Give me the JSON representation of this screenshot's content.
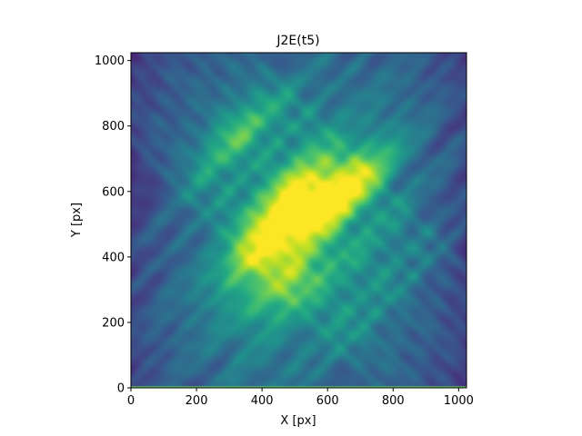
{
  "chart_data": {
    "type": "heatmap",
    "title": "J2E(t5)",
    "xlabel": "X [px]",
    "ylabel": "Y [px]",
    "xlim": [
      0,
      1024
    ],
    "ylim": [
      0,
      1024
    ],
    "x_ticks": [
      0,
      200,
      400,
      600,
      800,
      1000
    ],
    "y_ticks": [
      0,
      200,
      400,
      600,
      800,
      1000
    ],
    "x_tick_labels": [
      "0",
      "200",
      "400",
      "600",
      "800",
      "1000"
    ],
    "y_tick_labels": [
      "0",
      "200",
      "400",
      "600",
      "800",
      "1000"
    ],
    "colormap": "viridis",
    "colorbar": false,
    "grid": false,
    "field": {
      "description_of_pattern": "criss-crossing diagonal ridges (lines along +45 and -45 degrees) with a bright elongated core running from about (380,420) to (720,640)",
      "ridges_plus45": [
        -520,
        -430,
        -300,
        -240,
        -130,
        -60,
        20,
        100,
        180,
        300,
        420
      ],
      "ridges_minus45": [
        760,
        840,
        900,
        980,
        1060,
        1120,
        1200,
        1290,
        1380
      ],
      "hotspots": [
        {
          "x": 390,
          "y": 420,
          "level": 0.95
        },
        {
          "x": 500,
          "y": 600,
          "level": 0.9
        },
        {
          "x": 580,
          "y": 540,
          "level": 0.8
        },
        {
          "x": 700,
          "y": 640,
          "level": 0.75
        },
        {
          "x": 470,
          "y": 310,
          "level": 0.7
        },
        {
          "x": 320,
          "y": 780,
          "level": 0.55
        }
      ]
    }
  }
}
